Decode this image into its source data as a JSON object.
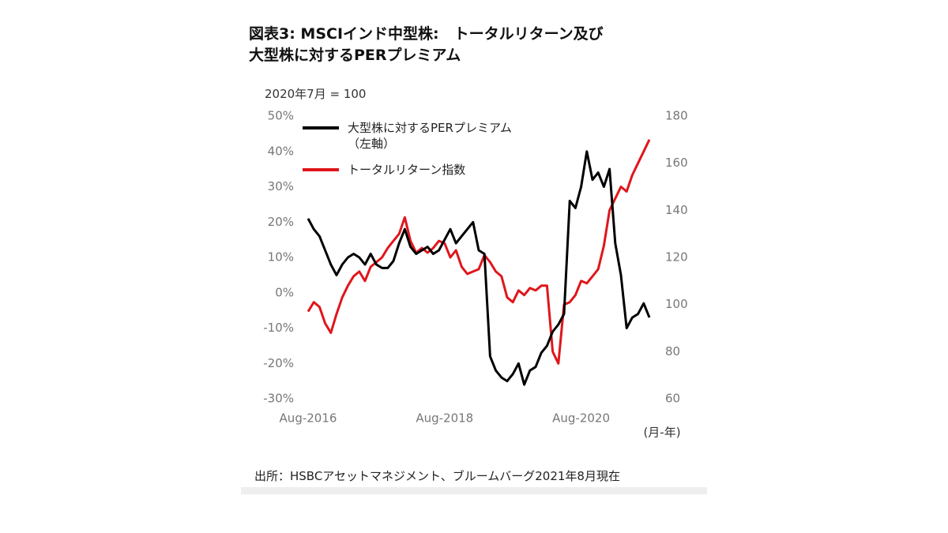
{
  "chart_data": {
    "type": "line",
    "title": "図表3: MSCIインド中型株:　トータルリターン及び\n大型株に対するPERプレミアム",
    "subtitle": "2020年7月 = 100",
    "xlabel": "(月-年)",
    "source": "出所：HSBCアセットマネジメント、ブルームバーグ2021年8月現在",
    "categories": [
      "Aug-2016",
      null,
      null,
      null,
      null,
      null,
      null,
      null,
      null,
      null,
      null,
      null,
      null,
      null,
      null,
      null,
      null,
      null,
      null,
      null,
      null,
      null,
      null,
      null,
      "Aug-2018",
      null,
      null,
      null,
      null,
      null,
      null,
      null,
      null,
      null,
      null,
      null,
      null,
      null,
      null,
      null,
      null,
      null,
      null,
      null,
      null,
      null,
      null,
      null,
      "Aug-2020",
      null,
      null,
      null,
      null,
      null,
      null,
      null,
      null,
      null,
      null,
      null,
      null
    ],
    "series": [
      {
        "name": "大型株に対するPERプレミアム\n（左軸）",
        "color": "#000000",
        "axis": "y",
        "values": [
          21,
          18,
          16,
          12,
          8,
          5,
          8,
          10,
          11,
          10,
          8,
          11,
          8,
          7,
          7,
          9,
          14,
          18,
          13,
          11,
          12,
          13,
          11,
          12,
          15,
          18,
          14,
          16,
          18,
          20,
          12,
          11,
          -18,
          -22,
          -24,
          -25,
          -23,
          -20,
          -26,
          -22,
          -21,
          -17,
          -15,
          -11,
          -9,
          -6,
          26,
          24,
          30,
          40,
          32,
          34,
          30,
          35,
          14,
          5,
          -10,
          -7,
          -6,
          -3,
          -7
        ]
      },
      {
        "name": "トータルリターン指数",
        "color": "#e0161b",
        "axis": "y2",
        "values": [
          97,
          101,
          99,
          92,
          88,
          96,
          103,
          108,
          112,
          114,
          110,
          116,
          118,
          120,
          124,
          127,
          130,
          137,
          127,
          122,
          124,
          122,
          124,
          127,
          126,
          120,
          123,
          116,
          113,
          114,
          115,
          121,
          118,
          114,
          112,
          103,
          101,
          106,
          104,
          107,
          106,
          108,
          108,
          80,
          75,
          100,
          101,
          104,
          110,
          109,
          112,
          115,
          125,
          140,
          145,
          150,
          148,
          155,
          160,
          165,
          170
        ]
      }
    ],
    "ylim": [
      -30,
      50
    ],
    "yticks": [
      {
        "value": -30,
        "label": "-30%"
      },
      {
        "value": -20,
        "label": "-20%"
      },
      {
        "value": -10,
        "label": "-10%"
      },
      {
        "value": 0,
        "label": "0%"
      },
      {
        "value": 10,
        "label": "10%"
      },
      {
        "value": 20,
        "label": "20%"
      },
      {
        "value": 30,
        "label": "30%"
      },
      {
        "value": 40,
        "label": "40%"
      },
      {
        "value": 50,
        "label": "50%"
      }
    ],
    "y2lim": [
      60,
      180
    ],
    "y2ticks": [
      60,
      80,
      100,
      120,
      140,
      160,
      180
    ],
    "legend": "upper left"
  }
}
